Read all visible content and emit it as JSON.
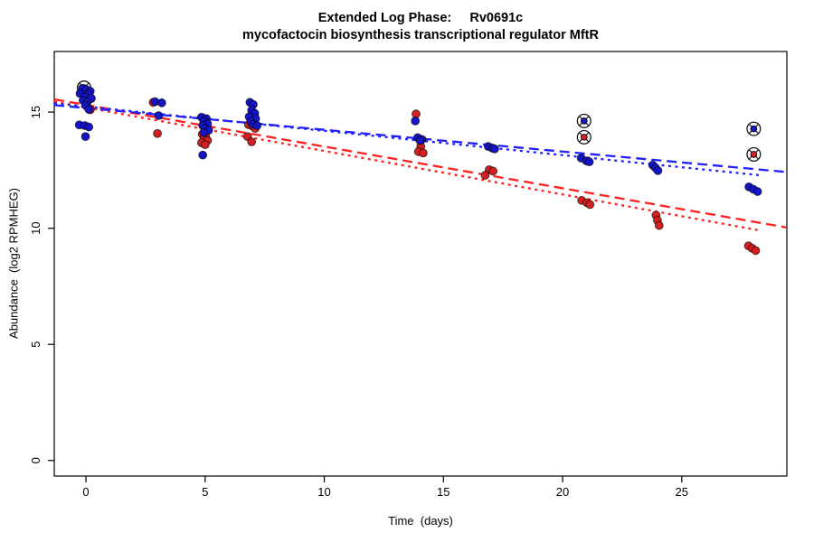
{
  "figure": {
    "background": "#ffffff"
  },
  "chart_data": {
    "type": "scatter",
    "title_line1": "Extended Log Phase:     Rv0691c",
    "title_line2": "mycofactocin biosynthesis transcriptional regulator MftR",
    "xlabel": "Time  (days)",
    "ylabel": "Abundance  (log2 RPMHEG)",
    "x_ticks": [
      0,
      5,
      10,
      15,
      20,
      25
    ],
    "y_ticks": [
      0,
      5,
      10,
      15
    ],
    "xlim": [
      -1.33,
      29.41
    ],
    "ylim": [
      -0.67,
      17.61
    ],
    "grid": false,
    "legend": "none",
    "colors": {
      "blue_point": "#1414C8",
      "red_point": "#D42020",
      "blue_line": "#2020FF",
      "red_line": "#FF2020",
      "axis": "#000000",
      "flag_ring": "#1a1a1a"
    },
    "series": [
      {
        "name": "red-points",
        "color_key": "red_point",
        "points": [
          [
            0.22,
            15.58
          ],
          [
            0.18,
            15.1
          ],
          [
            2.82,
            15.42
          ],
          [
            3.0,
            14.08
          ],
          [
            4.88,
            14.05
          ],
          [
            5.02,
            13.98
          ],
          [
            4.95,
            13.88
          ],
          [
            5.1,
            13.78
          ],
          [
            4.85,
            13.68
          ],
          [
            5.0,
            13.6
          ],
          [
            6.82,
            14.46
          ],
          [
            6.98,
            14.4
          ],
          [
            7.1,
            14.3
          ],
          [
            6.78,
            13.95
          ],
          [
            6.95,
            13.72
          ],
          [
            13.85,
            14.92
          ],
          [
            14.05,
            13.52
          ],
          [
            13.95,
            13.3
          ],
          [
            14.15,
            13.24
          ],
          [
            16.92,
            12.52
          ],
          [
            17.08,
            12.46
          ],
          [
            16.75,
            12.28
          ],
          [
            20.8,
            11.2
          ],
          [
            21.02,
            11.1
          ],
          [
            21.15,
            11.02
          ],
          [
            23.92,
            10.56
          ],
          [
            23.98,
            10.34
          ],
          [
            24.05,
            10.12
          ],
          [
            27.8,
            9.24
          ],
          [
            27.95,
            9.14
          ],
          [
            28.1,
            9.04
          ]
        ]
      },
      {
        "name": "blue-points",
        "color_key": "blue_point",
        "points": [
          [
            -0.15,
            16.02
          ],
          [
            0.02,
            15.97
          ],
          [
            0.18,
            15.9
          ],
          [
            -0.25,
            15.8
          ],
          [
            0.1,
            15.78
          ],
          [
            -0.05,
            15.65
          ],
          [
            0.22,
            15.6
          ],
          [
            -0.12,
            15.5
          ],
          [
            0.05,
            15.42
          ],
          [
            0.0,
            15.28
          ],
          [
            0.12,
            15.12
          ],
          [
            -0.28,
            14.45
          ],
          [
            -0.05,
            14.42
          ],
          [
            0.12,
            14.36
          ],
          [
            -0.02,
            13.95
          ],
          [
            2.9,
            15.45
          ],
          [
            3.18,
            15.4
          ],
          [
            3.05,
            14.85
          ],
          [
            4.85,
            14.78
          ],
          [
            5.05,
            14.72
          ],
          [
            4.95,
            14.6
          ],
          [
            5.1,
            14.5
          ],
          [
            4.9,
            14.42
          ],
          [
            5.0,
            14.3
          ],
          [
            5.15,
            14.22
          ],
          [
            4.95,
            14.12
          ],
          [
            4.9,
            13.15
          ],
          [
            6.88,
            15.42
          ],
          [
            7.02,
            15.33
          ],
          [
            6.95,
            15.08
          ],
          [
            7.08,
            14.95
          ],
          [
            6.85,
            14.8
          ],
          [
            7.12,
            14.72
          ],
          [
            6.92,
            14.6
          ],
          [
            7.02,
            14.48
          ],
          [
            7.18,
            14.42
          ],
          [
            13.82,
            14.62
          ],
          [
            13.92,
            13.9
          ],
          [
            14.1,
            13.82
          ],
          [
            14.02,
            13.78
          ],
          [
            16.88,
            13.52
          ],
          [
            17.05,
            13.45
          ],
          [
            17.15,
            13.42
          ],
          [
            20.78,
            13.02
          ],
          [
            21.0,
            12.9
          ],
          [
            21.12,
            12.86
          ],
          [
            23.78,
            12.72
          ],
          [
            23.9,
            12.6
          ],
          [
            24.0,
            12.48
          ],
          [
            27.82,
            11.78
          ],
          [
            28.0,
            11.68
          ],
          [
            28.18,
            11.58
          ]
        ]
      }
    ],
    "flagged_points": [
      {
        "name": "flagged-blue-day0",
        "color_key": "blue_point",
        "x": -0.08,
        "y": 16.05
      },
      {
        "name": "flagged-blue-day21",
        "color_key": "blue_point",
        "x": 20.9,
        "y": 14.62
      },
      {
        "name": "flagged-red-day21",
        "color_key": "red_point",
        "x": 20.9,
        "y": 13.92
      },
      {
        "name": "flagged-blue-day28",
        "color_key": "blue_point",
        "x": 28.02,
        "y": 14.28
      },
      {
        "name": "flagged-red-day28",
        "color_key": "red_point",
        "x": 28.02,
        "y": 13.18
      }
    ],
    "trend_lines": [
      {
        "name": "red-trend-dashed",
        "color_key": "red_line",
        "dash": "11,6",
        "x1": -1.33,
        "y1": 15.55,
        "x2": 29.41,
        "y2": 10.03
      },
      {
        "name": "red-trend-dotted",
        "color_key": "red_line",
        "dash": "3,4.5",
        "x1": -1.33,
        "y1": 15.45,
        "x2": 28.3,
        "y2": 9.9
      },
      {
        "name": "blue-trend-dashed",
        "color_key": "blue_line",
        "dash": "11,6",
        "x1": -1.33,
        "y1": 15.3,
        "x2": 29.41,
        "y2": 12.42
      },
      {
        "name": "blue-trend-dotted",
        "color_key": "blue_line",
        "dash": "3,4.5",
        "x1": -1.33,
        "y1": 15.38,
        "x2": 28.3,
        "y2": 12.28
      }
    ]
  }
}
